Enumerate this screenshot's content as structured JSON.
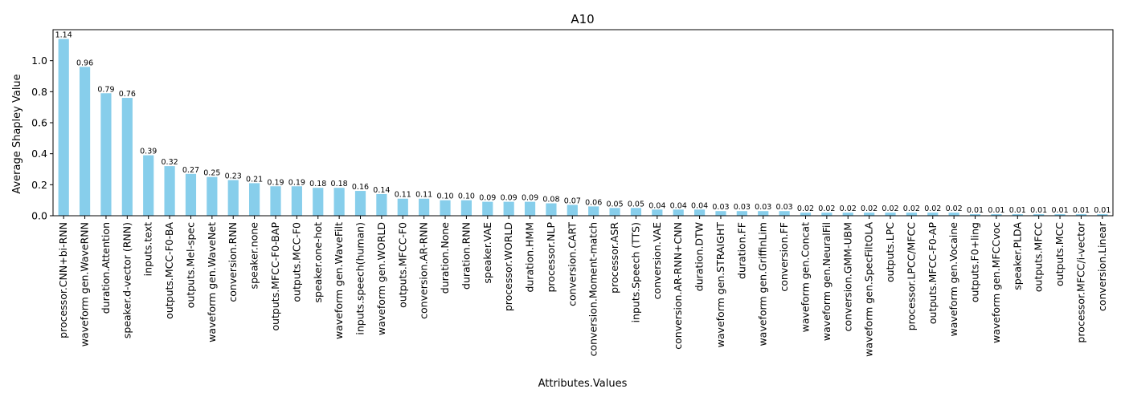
{
  "chart_data": {
    "type": "bar",
    "title": "A10",
    "xlabel": "Attributes.Values",
    "ylabel": "Average Shapley Value",
    "ylim": [
      0,
      1.2
    ],
    "yticks": [
      "0.0",
      "0.2",
      "0.4",
      "0.6",
      "0.8",
      "1.0"
    ],
    "bar_color": "#87ceeb",
    "grid": false,
    "legend": "none",
    "categories": [
      "processor.CNN+bi-RNN",
      "waveform gen.WaveRNN",
      "duration.Attention",
      "speaker.d-vector (RNN)",
      "inputs.text",
      "outputs.MCC-F0-BA",
      "outputs.Mel-spec",
      "waveform gen.WaveNet",
      "conversion.RNN",
      "speaker.none",
      "outputs.MFCC-F0-BAP",
      "outputs.MCC-F0",
      "speaker.one-hot",
      "waveform gen.WaveFilt",
      "inputs.speech(human)",
      "waveform gen.WORLD",
      "outputs.MFCC-F0",
      "conversion.AR-RNN",
      "duration.None",
      "duration.RNN",
      "speaker.VAE",
      "processor.WORLD",
      "duration.HMM",
      "processor.NLP",
      "conversion.CART",
      "conversion.Moment-match",
      "processor.ASR",
      "inputs.Speech (TTS)",
      "conversion.VAE",
      "conversion.AR-RNN+CNN",
      "duration.DTW",
      "waveform gen.STRAIGHT",
      "duration.FF",
      "waveform gen.GriffinLim",
      "conversion.FF",
      "waveform gen.Concat",
      "waveform gen.NeuralFil",
      "conversion.GMM-UBM",
      "waveform gen.SpecFiltOLA",
      "outputs.LPC",
      "processor.LPCC/MFCC",
      "outputs.MFCC-F0-AP",
      "waveform gen.Vocaine",
      "outputs.F0+ling",
      "waveform gen.MFCCvoc",
      "speaker.PLDA",
      "outputs.MFCC",
      "outputs.MCC",
      "processor.MFCC/i-vector",
      "conversion.Linear"
    ],
    "values": [
      1.14,
      0.96,
      0.79,
      0.76,
      0.39,
      0.32,
      0.27,
      0.25,
      0.23,
      0.21,
      0.19,
      0.19,
      0.18,
      0.18,
      0.16,
      0.14,
      0.11,
      0.11,
      0.1,
      0.1,
      0.09,
      0.09,
      0.09,
      0.08,
      0.07,
      0.06,
      0.05,
      0.05,
      0.04,
      0.04,
      0.04,
      0.03,
      0.03,
      0.03,
      0.03,
      0.02,
      0.02,
      0.02,
      0.02,
      0.02,
      0.02,
      0.02,
      0.02,
      0.01,
      0.01,
      0.01,
      0.01,
      0.01,
      0.01,
      0.01
    ],
    "data_labels": [
      "1.14",
      "0.96",
      "0.79",
      "0.76",
      "0.39",
      "0.32",
      "0.27",
      "0.25",
      "0.23",
      "0.21",
      "0.19",
      "0.19",
      "0.18",
      "0.18",
      "0.16",
      "0.14",
      "0.11",
      "0.11",
      "0.10",
      "0.10",
      "0.09",
      "0.09",
      "0.09",
      "0.08",
      "0.07",
      "0.06",
      "0.05",
      "0.05",
      "0.04",
      "0.04",
      "0.04",
      "0.03",
      "0.03",
      "0.03",
      "0.03",
      "0.02",
      "0.02",
      "0.02",
      "0.02",
      "0.02",
      "0.02",
      "0.02",
      "0.02",
      "0.01",
      "0.01",
      "0.01",
      "0.01",
      "0.01",
      "0.01",
      "0.01"
    ]
  }
}
